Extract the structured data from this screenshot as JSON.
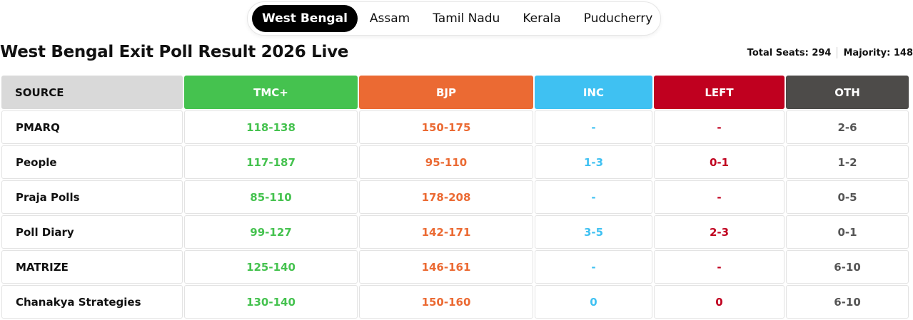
{
  "tabs": [
    "West Bengal",
    "Assam",
    "Tamil Nadu",
    "Kerala",
    "Puducherry"
  ],
  "active_tab": "West Bengal",
  "page_title": "West Bengal Exit Poll Result 2026 Live",
  "meta": {
    "total_seats": "Total Seats: 294",
    "majority": "Majority: 148"
  },
  "table": {
    "headers": [
      {
        "label": "SOURCE",
        "color": "#d9d9d9"
      },
      {
        "label": "TMC+",
        "color": "#45c24f"
      },
      {
        "label": "BJP",
        "color": "#eb6a33"
      },
      {
        "label": "INC",
        "color": "#3fc1f2"
      },
      {
        "label": "LEFT",
        "color": "#c0001f"
      },
      {
        "label": "OTH",
        "color": "#4d4b49"
      }
    ],
    "rows": [
      [
        "PMARQ",
        "118-138",
        "150-175",
        "-",
        "-",
        "2-6"
      ],
      [
        "People",
        "117-187",
        "95-110",
        "1-3",
        "0-1",
        "1-2"
      ],
      [
        "Praja Polls",
        "85-110",
        "178-208",
        "-",
        "-",
        "0-5"
      ],
      [
        "Poll Diary",
        "99-127",
        "142-171",
        "3-5",
        "2-3",
        "0-1"
      ],
      [
        "MATRIZE",
        "125-140",
        "146-161",
        "-",
        "-",
        "6-10"
      ],
      [
        "Chanakya Strategies",
        "130-140",
        "150-160",
        "0",
        "0",
        "6-10"
      ]
    ]
  }
}
